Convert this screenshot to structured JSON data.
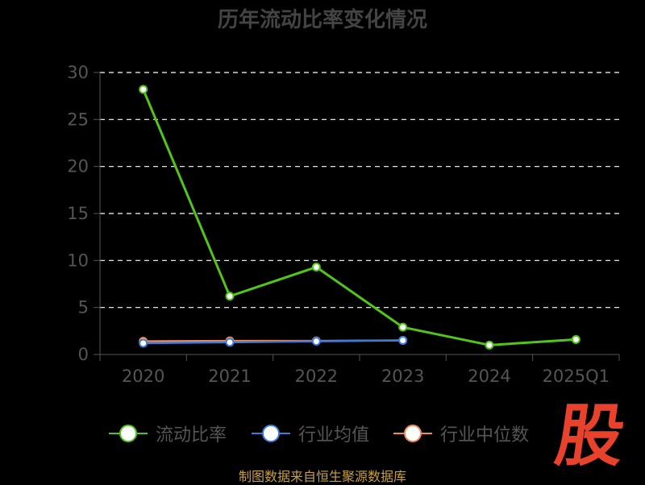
{
  "title": "历年流动比率变化情况",
  "footer": "制图数据来自恒生聚源数据库",
  "watermark": "股",
  "chart_data": {
    "type": "line",
    "categories": [
      "2020",
      "2021",
      "2022",
      "2023",
      "2024",
      "2025Q1"
    ],
    "ylim": [
      0,
      30
    ],
    "yticks": [
      0,
      5,
      10,
      15,
      20,
      25,
      30
    ],
    "grid": true,
    "legend_position": "bottom",
    "series": [
      {
        "name": "流动比率",
        "color": "#52c41a",
        "values": [
          28.2,
          6.2,
          9.3,
          2.9,
          1.0,
          1.6
        ]
      },
      {
        "name": "行业均值",
        "color": "#3e7bd6",
        "values": [
          1.2,
          1.3,
          1.4,
          1.5,
          null,
          null
        ]
      },
      {
        "name": "行业中位数",
        "color": "#f08a5d",
        "values": [
          1.4,
          1.45,
          1.45,
          1.5,
          null,
          null
        ]
      }
    ]
  }
}
